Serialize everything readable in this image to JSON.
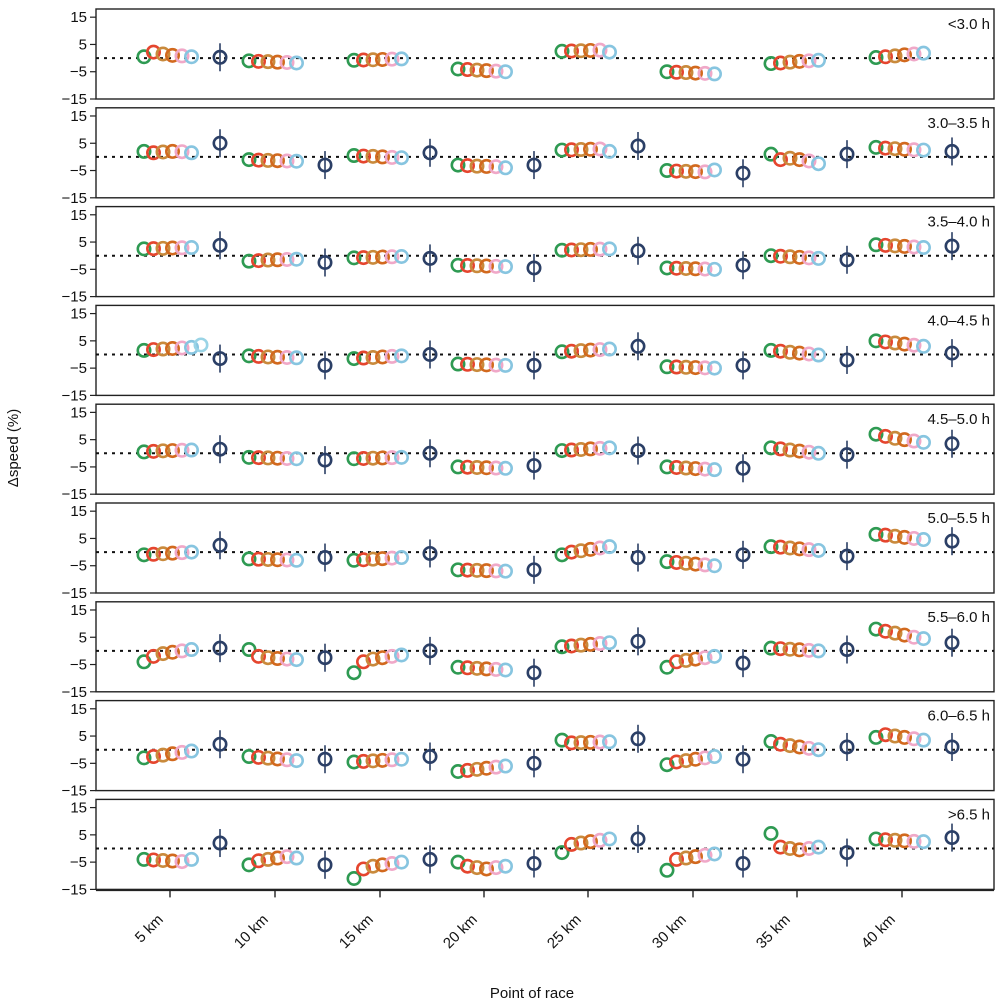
{
  "chart_data": {
    "type": "scatter",
    "xlabel": "Point of race",
    "ylabel": "Δspeed (%)",
    "ylim": [
      -15,
      18
    ],
    "yticks": [
      "15",
      "5",
      "−5",
      "−15"
    ],
    "ytick_values": [
      15,
      5,
      -5,
      -15
    ],
    "reference_line": 0,
    "categories": [
      "5 km",
      "10 km",
      "15 km",
      "20 km",
      "25 km",
      "30 km",
      "35 km",
      "40 km"
    ],
    "series_colors": [
      "#2e9a52",
      "#e5452e",
      "#c98a3c",
      "#d2691e",
      "#f0a8c8",
      "#87c5e0",
      "#9ad4e6",
      "#b8d9a8",
      "#2e9a52",
      "#e08a2a",
      "#2b3f66"
    ],
    "panels": [
      {
        "label": "<3.0 h",
        "points": [
          [
            0.5,
            2.2,
            1.5,
            1.0,
            0.8,
            0.5,
            0.3
          ],
          [
            -1.0,
            -1.2,
            -1.3,
            -1.5,
            -1.6,
            -1.8
          ],
          [
            -0.8,
            -0.7,
            -0.6,
            -0.5,
            -0.4,
            -0.3
          ],
          [
            -4.0,
            -4.2,
            -4.4,
            -4.6,
            -4.8,
            -5.0
          ],
          [
            2.5,
            2.6,
            2.7,
            2.8,
            2.9,
            2.2
          ],
          [
            -5.0,
            -5.2,
            -5.3,
            -5.5,
            -5.6,
            -5.8
          ],
          [
            -2.0,
            -1.8,
            -1.5,
            -1.2,
            -1.0,
            -0.8
          ],
          [
            0.2,
            0.5,
            0.8,
            1.2,
            1.5,
            1.8
          ]
        ]
      },
      {
        "label": "3.0–3.5 h",
        "points": [
          [
            2.0,
            1.5,
            1.8,
            2.0,
            1.9,
            1.5,
            5.0
          ],
          [
            -1.0,
            -1.2,
            -1.3,
            -1.4,
            -1.5,
            -1.6,
            -3.0
          ],
          [
            0.5,
            0.3,
            0.2,
            0.0,
            -0.2,
            -0.3,
            1.5
          ],
          [
            -3.0,
            -3.2,
            -3.4,
            -3.5,
            -3.6,
            -4.0,
            -3.0
          ],
          [
            2.5,
            2.6,
            2.7,
            2.8,
            2.9,
            2.0,
            4.0
          ],
          [
            -5.0,
            -5.2,
            -5.3,
            -5.4,
            -5.5,
            -4.8,
            -6.0
          ],
          [
            1.0,
            -1.0,
            -0.5,
            -1.0,
            -1.5,
            -2.5,
            1.0
          ],
          [
            3.5,
            3.2,
            3.0,
            2.8,
            2.6,
            2.5,
            2.0
          ]
        ]
      },
      {
        "label": "3.5–4.0 h",
        "points": [
          [
            2.5,
            2.6,
            2.7,
            2.8,
            2.9,
            3.0,
            3.8
          ],
          [
            -2.0,
            -1.8,
            -1.6,
            -1.5,
            -1.4,
            -1.3,
            -2.5
          ],
          [
            -0.8,
            -0.7,
            -0.6,
            -0.5,
            -0.4,
            -0.3,
            -1.0
          ],
          [
            -3.5,
            -3.6,
            -3.7,
            -3.8,
            -3.9,
            -4.0,
            -4.5
          ],
          [
            2.0,
            2.1,
            2.2,
            2.3,
            2.4,
            2.5,
            1.8
          ],
          [
            -4.5,
            -4.6,
            -4.7,
            -4.8,
            -4.9,
            -5.0,
            -3.5
          ],
          [
            0.0,
            -0.2,
            -0.4,
            -0.6,
            -0.8,
            -1.0,
            -1.5
          ],
          [
            4.0,
            3.8,
            3.6,
            3.4,
            3.2,
            3.0,
            3.5
          ]
        ]
      },
      {
        "label": "4.0–4.5 h",
        "points": [
          [
            1.5,
            1.8,
            2.0,
            2.2,
            2.4,
            2.6,
            3.5,
            -1.5
          ],
          [
            -0.5,
            -0.7,
            -0.9,
            -1.0,
            -1.1,
            -1.2,
            -4.0
          ],
          [
            -1.5,
            -1.3,
            -1.1,
            -0.9,
            -0.7,
            -0.5,
            0.0
          ],
          [
            -3.5,
            -3.6,
            -3.7,
            -3.8,
            -3.9,
            -4.0,
            -4.0
          ],
          [
            1.0,
            1.2,
            1.4,
            1.6,
            1.8,
            2.0,
            3.0
          ],
          [
            -4.5,
            -4.6,
            -4.7,
            -4.8,
            -4.9,
            -5.0,
            -4.0
          ],
          [
            1.5,
            1.2,
            0.8,
            0.5,
            0.2,
            -0.2,
            -2.0
          ],
          [
            5.0,
            4.6,
            4.2,
            3.8,
            3.4,
            3.0,
            0.5
          ]
        ]
      },
      {
        "label": "4.5–5.0 h",
        "points": [
          [
            0.5,
            0.7,
            0.9,
            1.0,
            1.1,
            1.2,
            1.5
          ],
          [
            -1.5,
            -1.6,
            -1.7,
            -1.8,
            -1.9,
            -2.0,
            -2.5
          ],
          [
            -2.0,
            -1.9,
            -1.8,
            -1.7,
            -1.6,
            -1.5,
            0.0
          ],
          [
            -5.0,
            -5.1,
            -5.2,
            -5.3,
            -5.4,
            -5.5,
            -4.5
          ],
          [
            1.0,
            1.2,
            1.4,
            1.6,
            1.8,
            2.0,
            1.0
          ],
          [
            -5.0,
            -5.2,
            -5.4,
            -5.6,
            -5.8,
            -6.0,
            -5.5
          ],
          [
            2.0,
            1.6,
            1.2,
            0.8,
            0.4,
            0.0,
            -0.5
          ],
          [
            7.0,
            6.2,
            5.5,
            5.0,
            4.5,
            4.0,
            3.5
          ]
        ]
      },
      {
        "label": "5.0–5.5 h",
        "points": [
          [
            -1.0,
            -0.8,
            -0.6,
            -0.4,
            -0.2,
            0.0,
            2.5
          ],
          [
            -2.5,
            -2.6,
            -2.7,
            -2.8,
            -2.9,
            -3.0,
            -2.0
          ],
          [
            -3.0,
            -2.8,
            -2.6,
            -2.4,
            -2.2,
            -2.0,
            -0.5
          ],
          [
            -6.5,
            -6.6,
            -6.7,
            -6.8,
            -6.9,
            -7.0,
            -6.5
          ],
          [
            -1.0,
            0.0,
            0.5,
            1.0,
            1.5,
            2.0,
            -2.0
          ],
          [
            -3.5,
            -3.8,
            -4.1,
            -4.4,
            -4.7,
            -5.0,
            -1.0
          ],
          [
            2.0,
            1.8,
            1.5,
            1.2,
            0.9,
            0.6,
            -1.5
          ],
          [
            6.5,
            6.2,
            5.8,
            5.4,
            5.0,
            4.6,
            4.0
          ]
        ]
      },
      {
        "label": "5.5–6.0 h",
        "points": [
          [
            -4.0,
            -2.0,
            -1.0,
            -0.5,
            0.0,
            0.5,
            1.0
          ],
          [
            0.5,
            -2.0,
            -2.5,
            -2.8,
            -3.0,
            -3.2,
            -2.5
          ],
          [
            -8.0,
            -4.0,
            -3.0,
            -2.5,
            -2.0,
            -1.5,
            0.0
          ],
          [
            -6.0,
            -6.2,
            -6.4,
            -6.6,
            -6.8,
            -7.0,
            -8.0
          ],
          [
            1.5,
            1.8,
            2.1,
            2.4,
            2.7,
            3.0,
            3.5
          ],
          [
            -6.0,
            -4.0,
            -3.5,
            -3.0,
            -2.5,
            -2.0,
            -4.5
          ],
          [
            1.0,
            0.8,
            0.6,
            0.4,
            0.2,
            0.0,
            0.5
          ],
          [
            8.0,
            7.2,
            6.5,
            5.8,
            5.0,
            4.5,
            3.0
          ]
        ]
      },
      {
        "label": "6.0–6.5 h",
        "points": [
          [
            -3.0,
            -2.5,
            -2.0,
            -1.5,
            -1.0,
            -0.5,
            2.0
          ],
          [
            -2.5,
            -2.8,
            -3.1,
            -3.4,
            -3.7,
            -4.0,
            -3.5
          ],
          [
            -4.5,
            -4.3,
            -4.1,
            -3.9,
            -3.7,
            -3.5,
            -2.5
          ],
          [
            -8.0,
            -7.6,
            -7.2,
            -6.8,
            -6.4,
            -6.0,
            -5.0
          ],
          [
            3.5,
            2.5,
            2.6,
            2.7,
            2.8,
            2.9,
            4.0
          ],
          [
            -5.5,
            -4.5,
            -4.0,
            -3.5,
            -3.0,
            -2.5,
            -3.5
          ],
          [
            3.0,
            2.0,
            1.5,
            1.0,
            0.5,
            0.0,
            1.0
          ],
          [
            4.5,
            5.5,
            5.0,
            4.5,
            4.0,
            3.5,
            1.0
          ]
        ]
      },
      {
        "label": ">6.5 h",
        "points": [
          [
            -4.0,
            -4.2,
            -4.4,
            -4.6,
            -4.8,
            -4.0,
            2.0
          ],
          [
            -6.0,
            -4.5,
            -4.0,
            -3.5,
            -3.0,
            -3.5,
            -6.0
          ],
          [
            -11.0,
            -7.5,
            -6.5,
            -6.0,
            -5.5,
            -5.0,
            -4.0
          ],
          [
            -5.0,
            -6.5,
            -7.0,
            -7.5,
            -7.0,
            -6.5,
            -5.5
          ],
          [
            -1.5,
            1.5,
            2.0,
            2.5,
            3.0,
            3.5,
            3.5
          ],
          [
            -8.0,
            -4.0,
            -3.5,
            -3.0,
            -2.5,
            -2.0,
            -5.5
          ],
          [
            5.5,
            0.5,
            0.0,
            -0.5,
            0.0,
            0.5,
            -1.5
          ],
          [
            3.5,
            3.2,
            3.0,
            2.8,
            2.6,
            2.5,
            4.0
          ]
        ]
      }
    ]
  }
}
